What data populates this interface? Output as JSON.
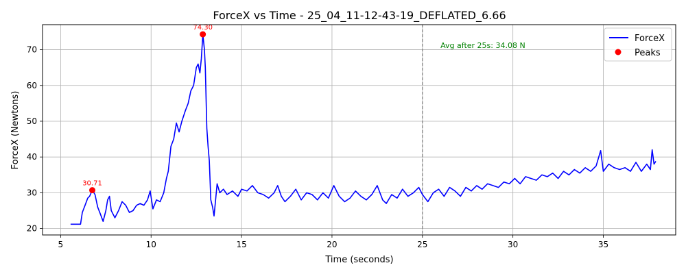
{
  "chart_data": {
    "type": "line",
    "title": "ForceX vs Time - 25_04_11-12-43-19_DEFLATED_6.66",
    "xlabel": "Time (seconds)",
    "ylabel": "ForceX (Newtons)",
    "xlim": [
      4.0,
      39.0
    ],
    "ylim": [
      18.2,
      77.0
    ],
    "xticks": [
      5,
      10,
      15,
      20,
      25,
      30,
      35
    ],
    "yticks": [
      20,
      30,
      40,
      50,
      60,
      70
    ],
    "grid": true,
    "legend_position": "top-right",
    "series": [
      {
        "name": "ForceX",
        "color": "#0000ff",
        "points": [
          [
            5.55,
            21.2
          ],
          [
            6.1,
            21.2
          ],
          [
            6.2,
            24.5
          ],
          [
            6.35,
            26.5
          ],
          [
            6.5,
            28.5
          ],
          [
            6.6,
            29.0
          ],
          [
            6.75,
            30.7
          ],
          [
            6.9,
            29.5
          ],
          [
            7.05,
            26.0
          ],
          [
            7.2,
            24.0
          ],
          [
            7.35,
            22.0
          ],
          [
            7.5,
            25.0
          ],
          [
            7.6,
            28.0
          ],
          [
            7.7,
            29.0
          ],
          [
            7.8,
            25.0
          ],
          [
            8.0,
            23.0
          ],
          [
            8.2,
            25.0
          ],
          [
            8.4,
            27.5
          ],
          [
            8.6,
            26.5
          ],
          [
            8.8,
            24.5
          ],
          [
            9.0,
            25.0
          ],
          [
            9.2,
            26.5
          ],
          [
            9.4,
            27.0
          ],
          [
            9.6,
            26.5
          ],
          [
            9.8,
            28.0
          ],
          [
            9.95,
            30.5
          ],
          [
            10.1,
            25.5
          ],
          [
            10.3,
            28.0
          ],
          [
            10.5,
            27.5
          ],
          [
            10.7,
            30.0
          ],
          [
            10.85,
            34.0
          ],
          [
            10.95,
            36.0
          ],
          [
            11.1,
            43.0
          ],
          [
            11.25,
            45.0
          ],
          [
            11.4,
            49.5
          ],
          [
            11.55,
            47.0
          ],
          [
            11.7,
            50.0
          ],
          [
            11.9,
            53.0
          ],
          [
            12.05,
            55.0
          ],
          [
            12.2,
            58.5
          ],
          [
            12.35,
            60.0
          ],
          [
            12.5,
            65.0
          ],
          [
            12.6,
            66.0
          ],
          [
            12.7,
            63.5
          ],
          [
            12.78,
            67.5
          ],
          [
            12.86,
            74.3
          ],
          [
            12.95,
            70.0
          ],
          [
            13.0,
            65.0
          ],
          [
            13.08,
            48.0
          ],
          [
            13.15,
            43.0
          ],
          [
            13.22,
            39.0
          ],
          [
            13.3,
            28.0
          ],
          [
            13.4,
            26.0
          ],
          [
            13.48,
            23.5
          ],
          [
            13.55,
            27.0
          ],
          [
            13.65,
            32.5
          ],
          [
            13.8,
            30.0
          ],
          [
            14.0,
            31.0
          ],
          [
            14.2,
            29.5
          ],
          [
            14.5,
            30.5
          ],
          [
            14.8,
            29.0
          ],
          [
            15.0,
            31.0
          ],
          [
            15.3,
            30.5
          ],
          [
            15.6,
            32.0
          ],
          [
            15.9,
            30.0
          ],
          [
            16.2,
            29.5
          ],
          [
            16.5,
            28.5
          ],
          [
            16.8,
            30.0
          ],
          [
            17.0,
            32.0
          ],
          [
            17.2,
            29.0
          ],
          [
            17.4,
            27.5
          ],
          [
            17.7,
            29.0
          ],
          [
            18.0,
            31.0
          ],
          [
            18.3,
            28.0
          ],
          [
            18.6,
            30.0
          ],
          [
            18.9,
            29.5
          ],
          [
            19.2,
            28.0
          ],
          [
            19.5,
            30.0
          ],
          [
            19.8,
            28.5
          ],
          [
            20.1,
            32.0
          ],
          [
            20.4,
            29.0
          ],
          [
            20.7,
            27.5
          ],
          [
            21.0,
            28.5
          ],
          [
            21.3,
            30.5
          ],
          [
            21.6,
            29.0
          ],
          [
            21.9,
            28.0
          ],
          [
            22.2,
            29.5
          ],
          [
            22.5,
            32.0
          ],
          [
            22.8,
            28.0
          ],
          [
            23.0,
            27.0
          ],
          [
            23.3,
            29.5
          ],
          [
            23.6,
            28.5
          ],
          [
            23.9,
            31.0
          ],
          [
            24.2,
            29.0
          ],
          [
            24.5,
            30.0
          ],
          [
            24.8,
            31.5
          ],
          [
            25.0,
            29.5
          ],
          [
            25.3,
            27.5
          ],
          [
            25.6,
            30.0
          ],
          [
            25.9,
            31.0
          ],
          [
            26.2,
            29.0
          ],
          [
            26.5,
            31.5
          ],
          [
            26.8,
            30.5
          ],
          [
            27.1,
            29.0
          ],
          [
            27.4,
            31.5
          ],
          [
            27.7,
            30.5
          ],
          [
            28.0,
            32.0
          ],
          [
            28.3,
            31.0
          ],
          [
            28.6,
            32.5
          ],
          [
            28.9,
            32.0
          ],
          [
            29.2,
            31.5
          ],
          [
            29.5,
            33.0
          ],
          [
            29.8,
            32.5
          ],
          [
            30.1,
            34.0
          ],
          [
            30.4,
            32.5
          ],
          [
            30.7,
            34.5
          ],
          [
            31.0,
            34.0
          ],
          [
            31.3,
            33.5
          ],
          [
            31.6,
            35.0
          ],
          [
            31.9,
            34.5
          ],
          [
            32.2,
            35.5
          ],
          [
            32.5,
            34.0
          ],
          [
            32.8,
            36.0
          ],
          [
            33.1,
            35.0
          ],
          [
            33.4,
            36.5
          ],
          [
            33.7,
            35.5
          ],
          [
            34.0,
            37.0
          ],
          [
            34.3,
            36.0
          ],
          [
            34.6,
            37.5
          ],
          [
            34.85,
            41.8
          ],
          [
            35.0,
            36.0
          ],
          [
            35.3,
            38.0
          ],
          [
            35.6,
            37.0
          ],
          [
            35.9,
            36.5
          ],
          [
            36.2,
            37.0
          ],
          [
            36.5,
            36.0
          ],
          [
            36.8,
            38.5
          ],
          [
            37.1,
            36.0
          ],
          [
            37.4,
            38.0
          ],
          [
            37.6,
            36.5
          ],
          [
            37.7,
            42.0
          ],
          [
            37.8,
            38.0
          ],
          [
            37.9,
            38.8
          ]
        ]
      }
    ],
    "peaks": {
      "name": "Peaks",
      "color": "#ff0000",
      "points": [
        [
          6.75,
          30.71
        ],
        [
          12.86,
          74.3
        ]
      ],
      "labels": [
        "30.71",
        "74.30"
      ]
    },
    "vline": {
      "x": 25,
      "color": "#808080",
      "style": "dashed"
    },
    "annotation": {
      "text": "Avg after 25s: 34.08 N",
      "x": 26.0,
      "y": 70.5,
      "color": "#008000"
    },
    "legend": [
      "ForceX",
      "Peaks"
    ]
  }
}
